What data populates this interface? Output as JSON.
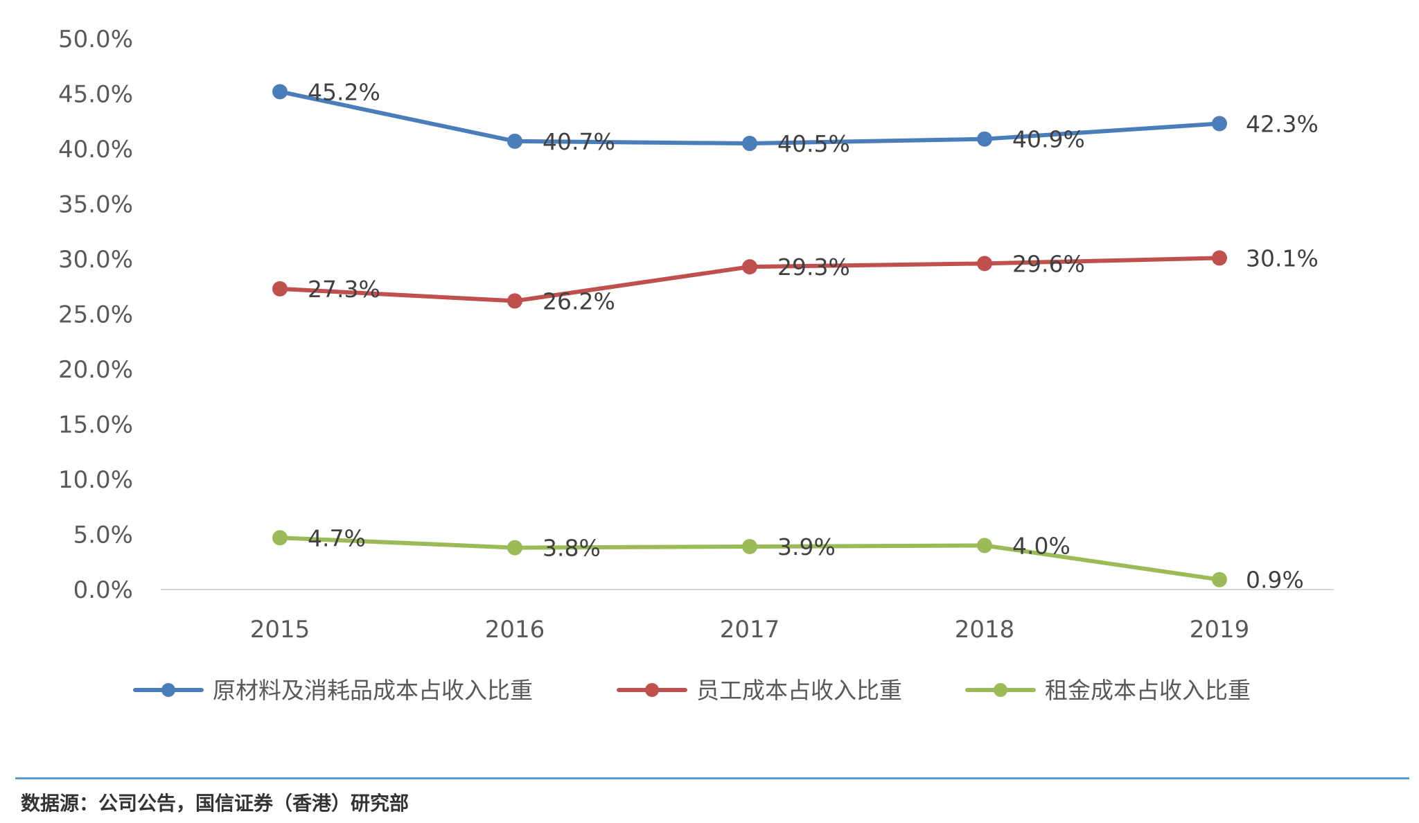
{
  "chart_data": {
    "type": "line",
    "x": [
      "2015",
      "2016",
      "2017",
      "2018",
      "2019"
    ],
    "y_ticks": [
      "0.0%",
      "5.0%",
      "10.0%",
      "15.0%",
      "20.0%",
      "25.0%",
      "30.0%",
      "35.0%",
      "40.0%",
      "45.0%",
      "50.0%"
    ],
    "ylim": [
      0,
      50
    ],
    "grid": false,
    "legend_position": "bottom",
    "series": [
      {
        "name": "原材料及消耗品成本占收入比重",
        "color": "#4a7ebb",
        "values": [
          45.2,
          40.7,
          40.5,
          40.9,
          42.3
        ],
        "labels": [
          "45.2%",
          "40.7%",
          "40.5%",
          "40.9%",
          "42.3%"
        ]
      },
      {
        "name": "员工成本占收入比重",
        "color": "#c0504d",
        "values": [
          27.3,
          26.2,
          29.3,
          29.6,
          30.1
        ],
        "labels": [
          "27.3%",
          "26.2%",
          "29.3%",
          "29.6%",
          "30.1%"
        ]
      },
      {
        "name": "租金成本占收入比重",
        "color": "#9bbb59",
        "values": [
          4.7,
          3.8,
          3.9,
          4.0,
          0.9
        ],
        "labels": [
          "4.7%",
          "3.8%",
          "3.9%",
          "4.0%",
          "0.9%"
        ]
      }
    ]
  },
  "source": "数据源：公司公告，国信证券（香港）研究部"
}
